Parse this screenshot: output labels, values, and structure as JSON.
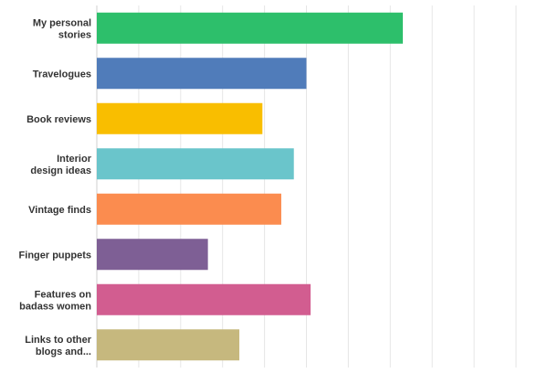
{
  "chart_data": {
    "type": "bar",
    "orientation": "horizontal",
    "categories": [
      [
        "My personal",
        "stories"
      ],
      [
        "Travelogues"
      ],
      [
        "Book reviews"
      ],
      [
        "Interior",
        "design ideas"
      ],
      [
        "Vintage finds"
      ],
      [
        "Finger puppets"
      ],
      [
        "Features on",
        "badass women"
      ],
      [
        "Links to other",
        "blogs and..."
      ]
    ],
    "values": [
      73,
      50,
      39.5,
      47,
      44,
      26.5,
      51,
      34
    ],
    "colors": [
      "#2dbf6b",
      "#507cba",
      "#f9be00",
      "#6ac5cb",
      "#fb8c4f",
      "#7e5f95",
      "#d25d90",
      "#c6b87e"
    ],
    "xlim": [
      0,
      100
    ],
    "grid": true,
    "title": "",
    "xlabel": "",
    "ylabel": ""
  }
}
